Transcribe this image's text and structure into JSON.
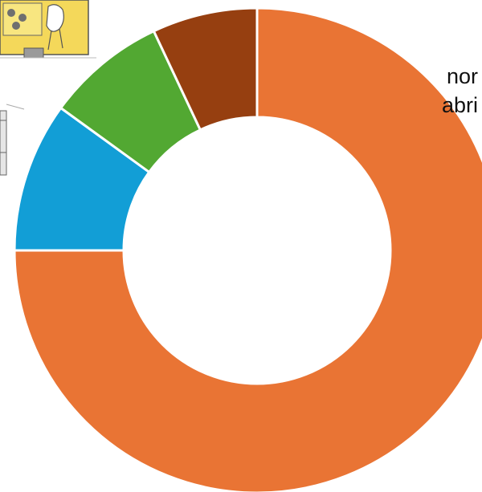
{
  "chart_data": {
    "type": "pie",
    "donut": true,
    "start_angle_deg": 0,
    "direction": "clockwise",
    "slices": [
      {
        "value": 75,
        "color": "#E97434"
      },
      {
        "value": 10,
        "color": "#129ED6"
      },
      {
        "value": 8,
        "color": "#52A832"
      },
      {
        "value": 7,
        "color": "#963F10"
      }
    ],
    "annotation_lines": [
      "nor",
      "abri"
    ]
  }
}
